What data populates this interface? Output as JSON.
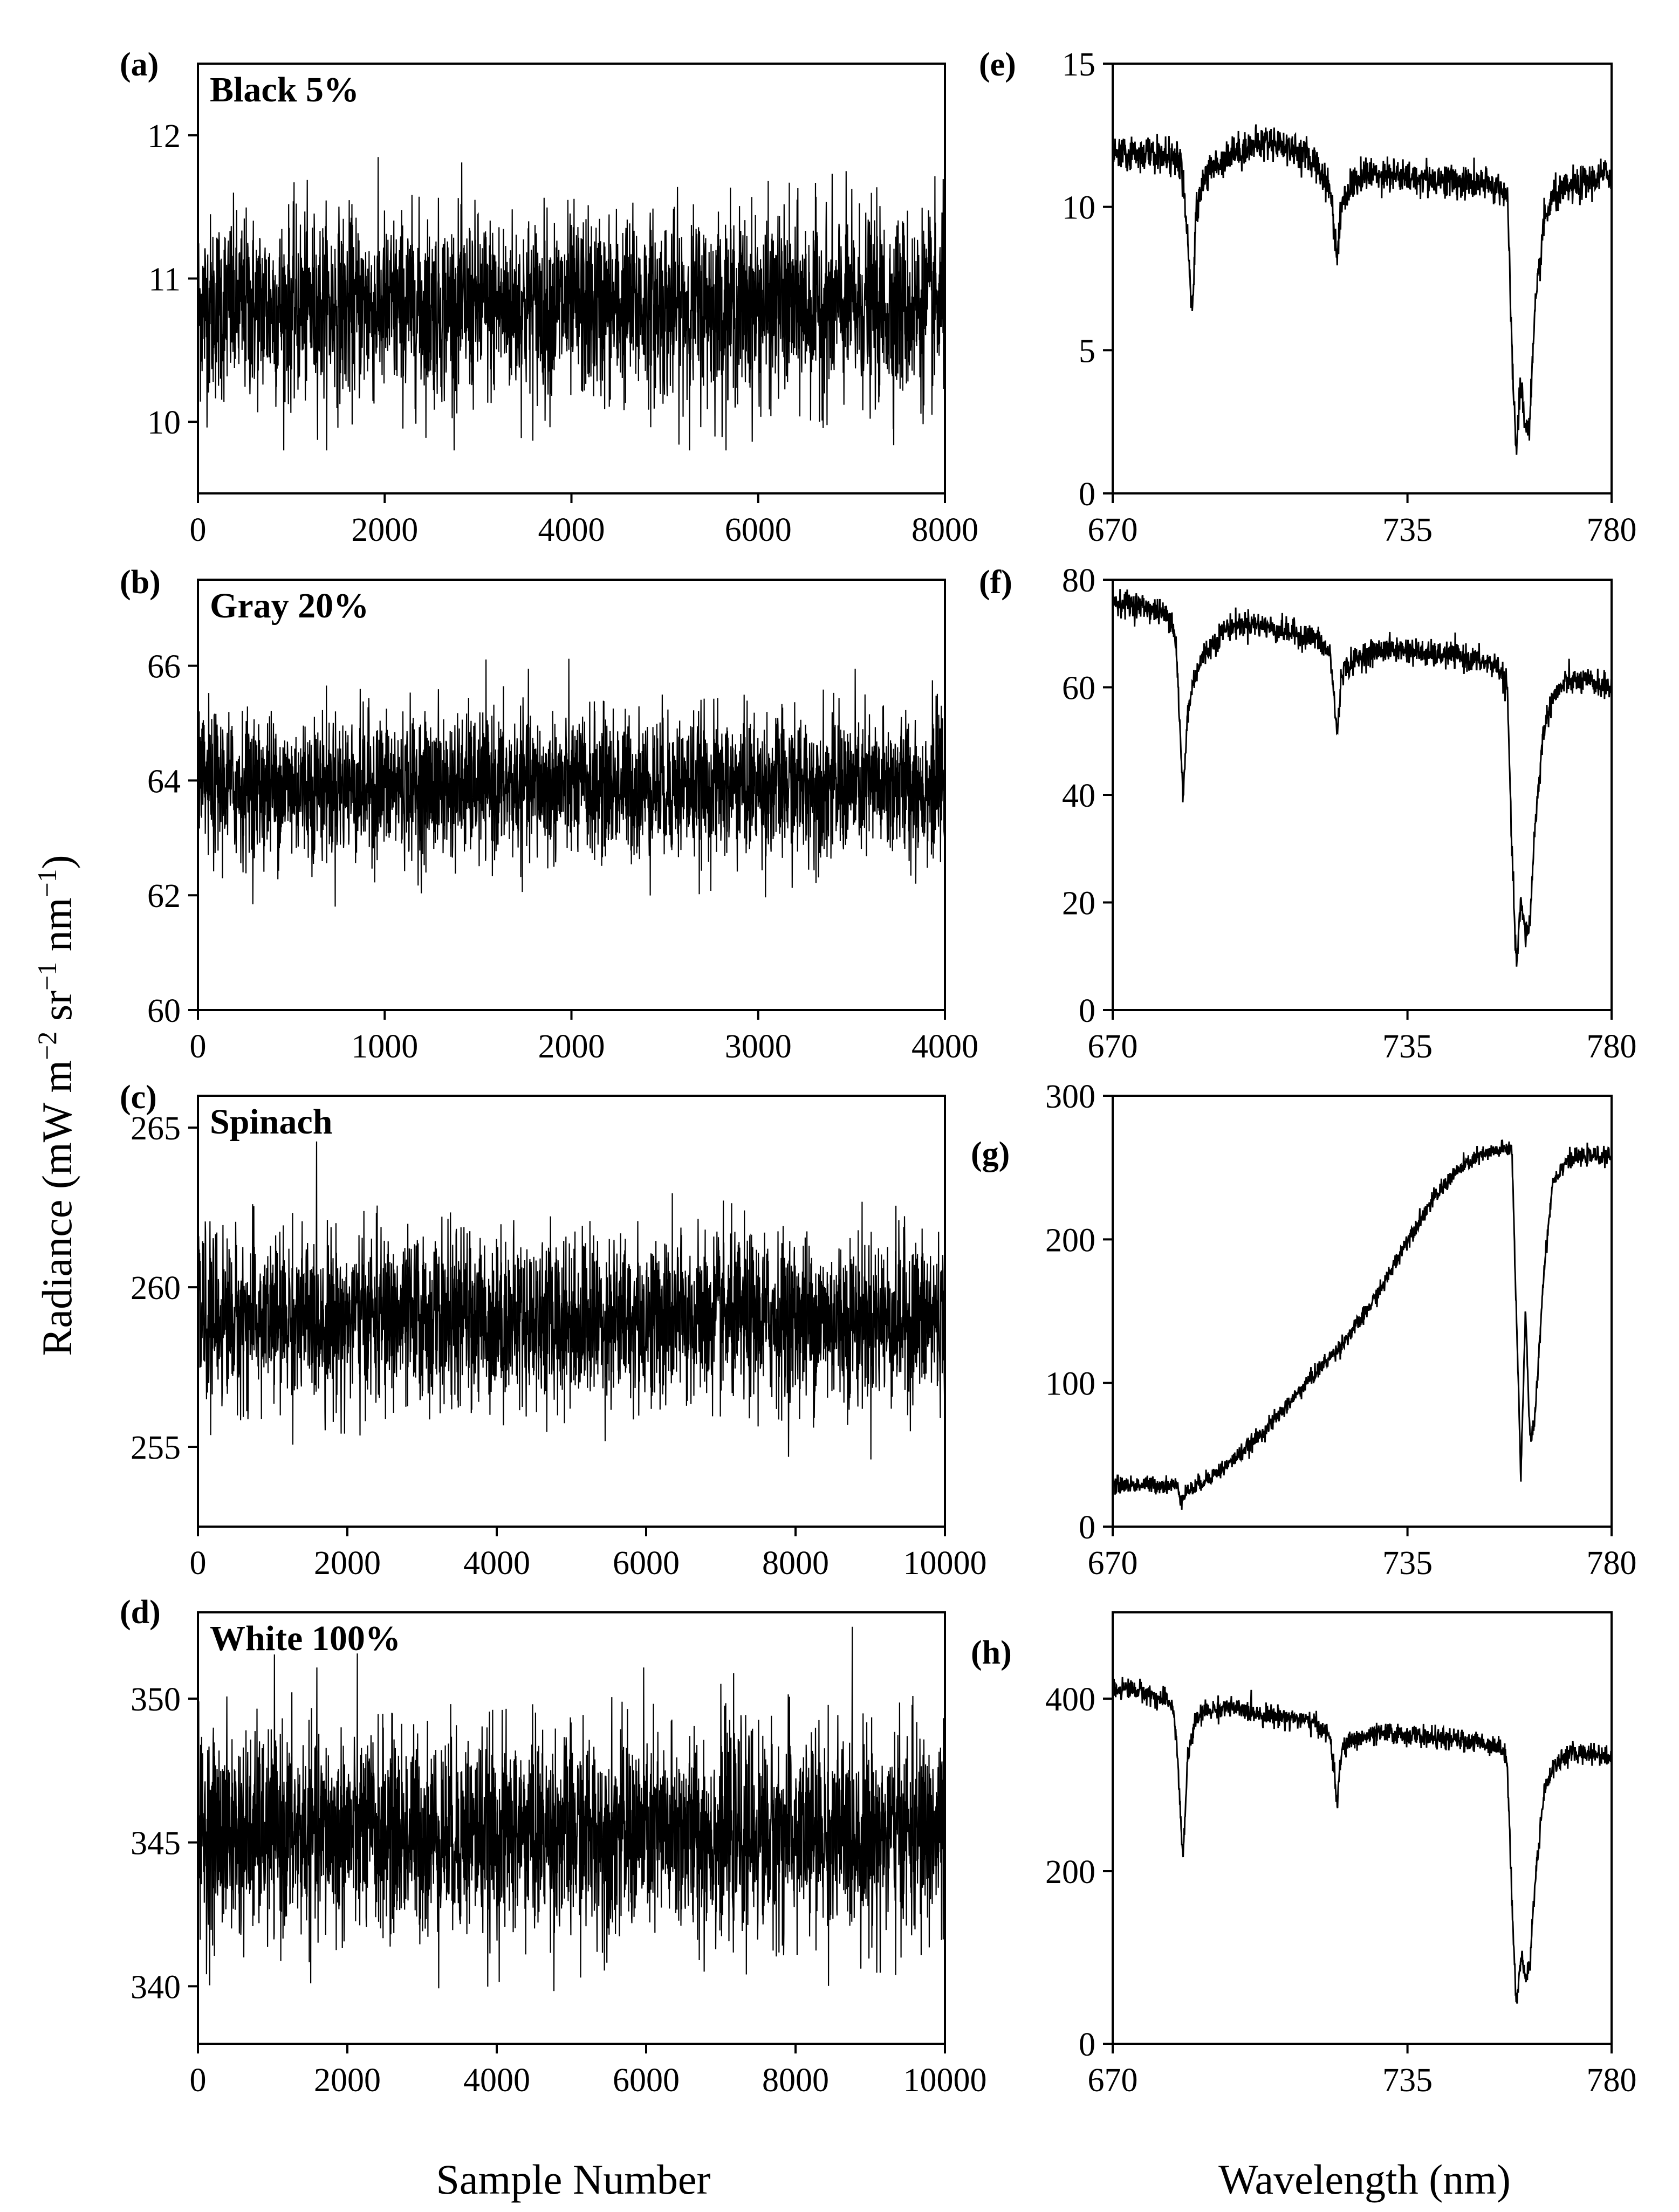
{
  "figure": {
    "shared_y_label": "Radiance (mW m",
    "shared_y_label_parts": [
      "Radiance (mW m",
      "−2",
      " sr",
      "−1",
      " nm",
      "−1",
      ")"
    ],
    "left_x_label": "Sample Number",
    "right_x_label": "Wavelength (nm)"
  },
  "colors": {
    "line": "#000000",
    "axes": "#000000",
    "background": "#ffffff"
  },
  "chart_data": [
    {
      "panel": "(a)",
      "type": "line",
      "sample": "Black 5%",
      "x_range": [
        0,
        8000
      ],
      "x_ticks": [
        0,
        2000,
        4000,
        6000,
        8000
      ],
      "ylim": [
        9.5,
        12.5
      ],
      "y_ticks": [
        10,
        11,
        12
      ],
      "series": [
        {
          "mean": 10.8,
          "noise_sd": 0.32,
          "min": 9.8,
          "max": 12.1,
          "n_samples": 8000
        }
      ],
      "grid": false
    },
    {
      "panel": "(b)",
      "type": "line",
      "sample": "Gray 20%",
      "x_range": [
        0,
        4000
      ],
      "x_ticks": [
        0,
        1000,
        2000,
        3000,
        4000
      ],
      "ylim": [
        60,
        67.5
      ],
      "y_ticks": [
        60,
        62,
        64,
        66
      ],
      "series": [
        {
          "mean": 63.9,
          "noise_sd": 0.62,
          "min": 60.7,
          "max": 67.1,
          "n_samples": 4000
        }
      ],
      "grid": false
    },
    {
      "panel": "(c)",
      "type": "line",
      "sample": "Spinach",
      "x_range": [
        0,
        10000
      ],
      "x_ticks": [
        0,
        2000,
        4000,
        6000,
        8000,
        10000
      ],
      "ylim": [
        252.5,
        266
      ],
      "y_ticks": [
        255,
        260,
        265
      ],
      "series": [
        {
          "mean": 259.0,
          "noise_sd": 1.3,
          "min": 253.0,
          "max": 265.5,
          "n_samples": 10000
        }
      ],
      "grid": false
    },
    {
      "panel": "(d)",
      "type": "line",
      "sample": "White 100%",
      "x_range": [
        0,
        10000
      ],
      "x_ticks": [
        0,
        2000,
        4000,
        6000,
        8000,
        10000
      ],
      "ylim": [
        338,
        353
      ],
      "y_ticks": [
        340,
        345,
        350
      ],
      "series": [
        {
          "mean": 345.3,
          "noise_sd": 1.75,
          "min": 338.7,
          "max": 352.5,
          "n_samples": 10000
        }
      ],
      "grid": false
    },
    {
      "panel": "(e)",
      "type": "line",
      "xlabel": "",
      "x_range": [
        670,
        780
      ],
      "x_ticks": [
        670,
        735,
        780
      ],
      "ylim": [
        0,
        15
      ],
      "y_ticks": [
        0,
        5,
        10,
        15
      ],
      "series": [
        {
          "x": [
            670,
            672,
            676,
            680,
            685,
            686,
            687.5,
            688.5,
            690,
            695,
            700,
            705,
            710,
            715,
            718,
            719.5,
            720.5,
            722,
            725,
            730,
            735,
            740,
            745,
            750,
            755,
            757,
            758,
            759,
            760,
            761,
            762,
            763,
            765,
            767,
            770,
            775,
            780
          ],
          "y": [
            11.9,
            11.8,
            11.9,
            11.8,
            11.6,
            10.0,
            6.2,
            10.0,
            11.0,
            11.8,
            12.1,
            12.3,
            12.0,
            11.5,
            10.6,
            8.2,
            10.2,
            10.6,
            11.1,
            11.2,
            11.0,
            11.0,
            10.9,
            10.8,
            10.7,
            10.5,
            5.0,
            1.4,
            4.0,
            2.2,
            2.6,
            6.0,
            9.4,
            10.3,
            10.6,
            10.9,
            11.2
          ],
          "noise": 0.3
        }
      ],
      "grid": false
    },
    {
      "panel": "(f)",
      "type": "line",
      "xlabel": "",
      "x_range": [
        670,
        780
      ],
      "x_ticks": [
        670,
        735,
        780
      ],
      "ylim": [
        0,
        80
      ],
      "y_ticks": [
        0,
        20,
        40,
        60,
        80
      ],
      "series": [
        {
          "x": [
            670,
            673,
            677,
            680,
            683,
            684,
            685.5,
            686.5,
            688,
            690,
            695,
            700,
            705,
            710,
            715,
            718,
            719.5,
            720.5,
            722,
            725,
            730,
            735,
            740,
            745,
            750,
            755,
            757,
            758,
            759,
            760,
            761,
            762,
            763,
            765,
            767,
            770,
            775,
            780
          ],
          "y": [
            76,
            75.5,
            75,
            74,
            73,
            68,
            39,
            55,
            62,
            66,
            71,
            72,
            71,
            70,
            69,
            66,
            51,
            63,
            64,
            66,
            67,
            67,
            66,
            66,
            65,
            64,
            60,
            30,
            8,
            20,
            14,
            16,
            33,
            52,
            58,
            61,
            61,
            60
          ],
          "noise": 1.2
        }
      ],
      "grid": false
    },
    {
      "panel": "(g)",
      "type": "line",
      "xlabel": "",
      "x_range": [
        670,
        780
      ],
      "x_ticks": [
        670,
        735,
        780
      ],
      "ylim": [
        0,
        300
      ],
      "y_ticks": [
        0,
        100,
        200,
        300
      ],
      "series": [
        {
          "x": [
            670,
            675,
            680,
            684,
            685,
            686,
            688,
            690,
            695,
            700,
            705,
            710,
            715,
            720,
            725,
            730,
            735,
            740,
            745,
            750,
            755,
            758,
            759,
            760,
            761,
            762,
            763,
            765,
            767,
            770,
            775,
            780
          ],
          "y": [
            29,
            29,
            29,
            29,
            20,
            24,
            27,
            32,
            42,
            56,
            72,
            90,
            108,
            125,
            145,
            170,
            200,
            225,
            245,
            257,
            262,
            264,
            150,
            35,
            150,
            62,
            70,
            175,
            240,
            255,
            258,
            258
          ],
          "noise": 3
        }
      ],
      "grid": false
    },
    {
      "panel": "(h)",
      "type": "line",
      "xlabel": "",
      "x_range": [
        670,
        780
      ],
      "x_ticks": [
        670,
        735,
        780
      ],
      "ylim": [
        0,
        500
      ],
      "y_ticks": [
        0,
        200,
        400
      ],
      "series": [
        {
          "x": [
            670,
            673,
            677,
            680,
            683,
            684,
            685.5,
            686.5,
            688,
            690,
            695,
            700,
            705,
            710,
            715,
            718,
            719.5,
            720.5,
            722,
            725,
            730,
            735,
            740,
            745,
            750,
            755,
            757,
            758,
            759,
            760,
            761,
            762,
            763,
            765,
            767,
            770,
            775,
            780
          ],
          "y": [
            410,
            412,
            408,
            400,
            395,
            360,
            210,
            330,
            370,
            385,
            390,
            385,
            380,
            378,
            370,
            355,
            280,
            340,
            350,
            355,
            360,
            358,
            355,
            352,
            350,
            346,
            330,
            170,
            42,
            100,
            78,
            90,
            180,
            290,
            320,
            335,
            338,
            332
          ],
          "noise": 6
        }
      ],
      "grid": false
    }
  ]
}
